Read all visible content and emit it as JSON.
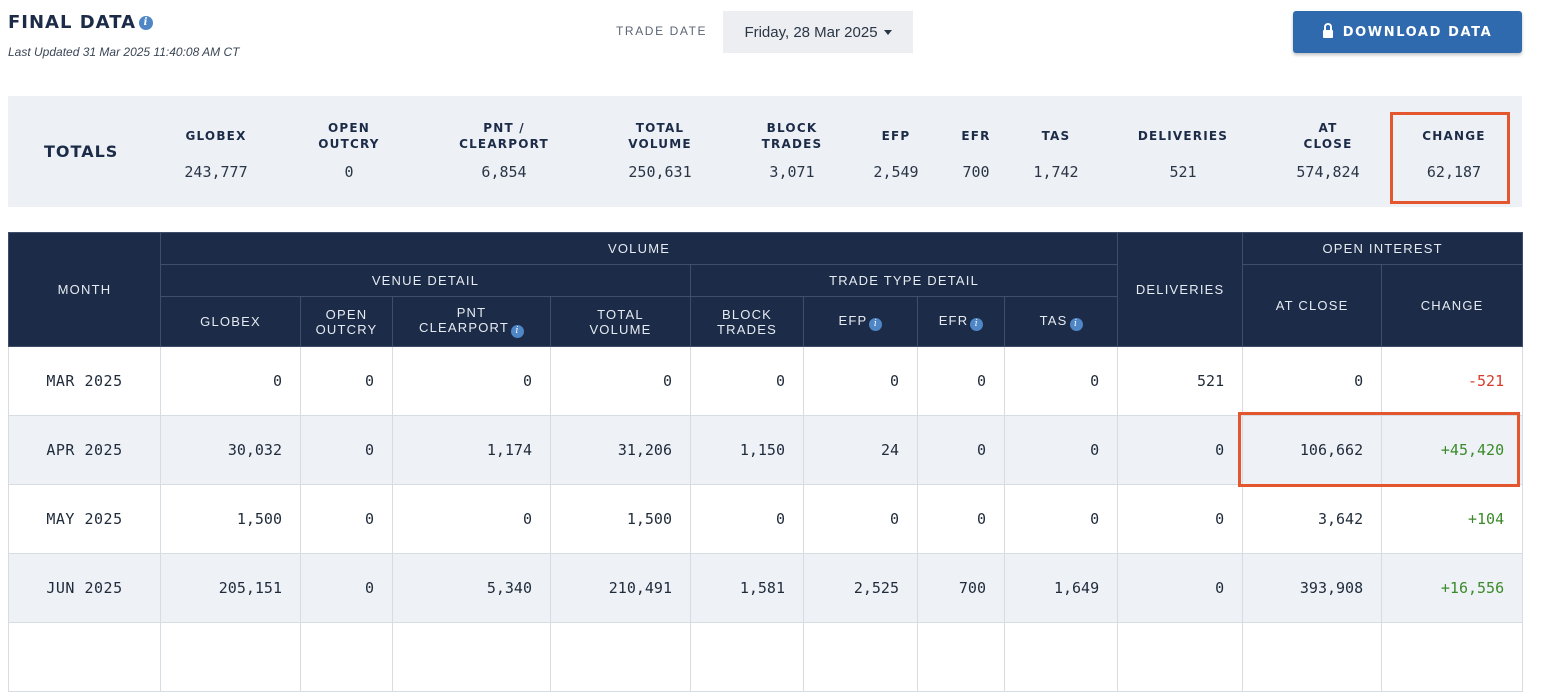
{
  "header": {
    "title": "FINAL DATA",
    "info_icon": "info-icon",
    "last_updated": "Last Updated 31 Mar 2025 11:40:08 AM CT",
    "trade_date_label": "TRADE DATE",
    "trade_date_value": "Friday, 28 Mar 2025",
    "download_label": "DOWNLOAD DATA",
    "download_icon": "lock-icon",
    "accent_color": "#2f6aaf"
  },
  "totals": {
    "label": "TOTALS",
    "globex": {
      "label1": "GLOBEX",
      "label2": "",
      "value": "243,777"
    },
    "open_outcry": {
      "label1": "OPEN",
      "label2": "OUTCRY",
      "value": "0"
    },
    "pnt": {
      "label1": "PNT /",
      "label2": "CLEARPORT",
      "value": "6,854"
    },
    "total_volume": {
      "label1": "TOTAL",
      "label2": "VOLUME",
      "value": "250,631"
    },
    "block_trades": {
      "label1": "BLOCK",
      "label2": "TRADES",
      "value": "3,071"
    },
    "efp": {
      "label1": "EFP",
      "label2": "",
      "value": "2,549"
    },
    "efr": {
      "label1": "EFR",
      "label2": "",
      "value": "700"
    },
    "tas": {
      "label1": "TAS",
      "label2": "",
      "value": "1,742"
    },
    "deliveries": {
      "label1": "DELIVERIES",
      "label2": "",
      "value": "521"
    },
    "at_close": {
      "label1": "AT",
      "label2": "CLOSE",
      "value": "574,824"
    },
    "change": {
      "label1": "CHANGE",
      "label2": "",
      "value": "62,187"
    }
  },
  "table": {
    "month_header": "MONTH",
    "volume_header": "VOLUME",
    "venue_detail": "VENUE DETAIL",
    "trade_type_detail": "TRADE TYPE DETAIL",
    "deliveries_header": "DELIVERIES",
    "open_interest_header": "OPEN INTEREST",
    "cols": {
      "globex": "GLOBEX",
      "open1": "OPEN",
      "open2": "OUTCRY",
      "pnt1": "PNT",
      "pnt2": "CLEARPORT",
      "total1": "TOTAL",
      "total2": "VOLUME",
      "block1": "BLOCK",
      "block2": "TRADES",
      "efp": "EFP",
      "efr": "EFR",
      "tas": "TAS",
      "at_close": "AT CLOSE",
      "change": "CHANGE"
    },
    "rows": [
      {
        "month": "MAR 2025",
        "globex": "0",
        "open_outcry": "0",
        "pnt": "0",
        "total": "0",
        "block": "0",
        "efp": "0",
        "efr": "0",
        "tas": "0",
        "deliveries": "521",
        "at_close": "0",
        "change": "-521",
        "change_dir": "neg"
      },
      {
        "month": "APR 2025",
        "globex": "30,032",
        "open_outcry": "0",
        "pnt": "1,174",
        "total": "31,206",
        "block": "1,150",
        "efp": "24",
        "efr": "0",
        "tas": "0",
        "deliveries": "0",
        "at_close": "106,662",
        "change": "+45,420",
        "change_dir": "pos"
      },
      {
        "month": "MAY 2025",
        "globex": "1,500",
        "open_outcry": "0",
        "pnt": "0",
        "total": "1,500",
        "block": "0",
        "efp": "0",
        "efr": "0",
        "tas": "0",
        "deliveries": "0",
        "at_close": "3,642",
        "change": "+104",
        "change_dir": "pos"
      },
      {
        "month": "JUN 2025",
        "globex": "205,151",
        "open_outcry": "0",
        "pnt": "5,340",
        "total": "210,491",
        "block": "1,581",
        "efp": "2,525",
        "efr": "700",
        "tas": "1,649",
        "deliveries": "0",
        "at_close": "393,908",
        "change": "+16,556",
        "change_dir": "pos"
      }
    ]
  }
}
